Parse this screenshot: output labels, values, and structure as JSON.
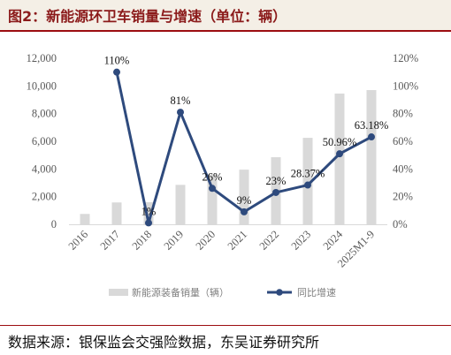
{
  "title": "图2：新能源环卫车销量与增速（单位：辆）",
  "source": "数据来源：银保监会交强险数据，东吴证券研究所",
  "colors": {
    "bar": "#d9d9d9",
    "line": "#2e4a7d",
    "header_bg": "#f4efe6",
    "header_rule": "#9c0d11"
  },
  "chart_data": {
    "type": "bar",
    "categories": [
      "2016",
      "2017",
      "2018",
      "2019",
      "2020",
      "2021",
      "2022",
      "2023",
      "2024",
      "2025M1-9"
    ],
    "series": [
      {
        "name": "新能源装备销量（辆）",
        "type": "bar",
        "axis": "left",
        "values": [
          750,
          1580,
          1600,
          2850,
          3600,
          3950,
          4850,
          6250,
          9450,
          9700
        ]
      },
      {
        "name": "同比增速",
        "type": "line",
        "axis": "right",
        "unit": "%",
        "values": [
          null,
          110,
          1,
          81,
          26,
          9,
          23,
          28.37,
          50.96,
          63.18
        ],
        "labels": [
          "",
          "110%",
          "1%",
          "81%",
          "26%",
          "9%",
          "23%",
          "28.37%",
          "50.96%",
          "63.18%"
        ]
      }
    ],
    "y_left": {
      "min": 0,
      "max": 12000,
      "ticks": [
        "0",
        "2,000",
        "4,000",
        "6,000",
        "8,000",
        "10,000",
        "12,000"
      ]
    },
    "y_right": {
      "min": 0,
      "max": 120,
      "ticks": [
        "0%",
        "20%",
        "40%",
        "60%",
        "80%",
        "100%",
        "120%"
      ]
    },
    "grid": false,
    "legend_position": "bottom"
  }
}
